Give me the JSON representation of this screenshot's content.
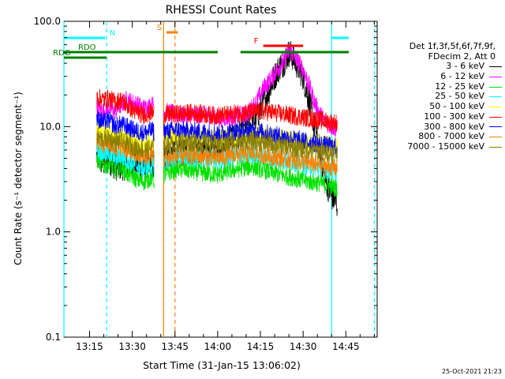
{
  "chart_data": {
    "type": "line",
    "title": "RHESSI Count Rates",
    "xlabel": "Start Time (31-Jan-15 13:06:02)",
    "ylabel": "Count Rate (s⁻¹ detector segment⁻¹)",
    "yscale": "log",
    "ylim": [
      0.1,
      100
    ],
    "xlim_minutes_after_13_06_02": [
      0,
      40
    ],
    "x_unit": "minutes after 13:06:02",
    "ytick_labels": [
      "100.0",
      "10.0",
      "1.0",
      "0.1"
    ],
    "ytick_values": [
      100,
      10,
      1,
      0.1
    ],
    "xtick_labels": [
      "13:15",
      "13:30",
      "13:45",
      "14:00",
      "14:15",
      "14:30",
      "14:45"
    ],
    "xtick_values": [
      9,
      24,
      39,
      54,
      69,
      84,
      99
    ],
    "grid": false,
    "legend_position": "right",
    "legend_header": [
      "Det 1f,3f,5f,6f,7f,9f,",
      "FDecim 2, Att 0"
    ],
    "series": [
      {
        "name": "3 - 6 keV",
        "color": "#000000",
        "points": [
          [
            11.5,
            5.2
          ],
          [
            14,
            4.5
          ],
          [
            16,
            4.8
          ],
          [
            18,
            4.2
          ],
          [
            22,
            4.2
          ],
          [
            25,
            4.5
          ],
          [
            28,
            4.0
          ],
          [
            31,
            4.3
          ],
          [
            31.7,
            3.8
          ],
          [
            35,
            5.0
          ],
          [
            39,
            5.5
          ],
          [
            44,
            5.8
          ],
          [
            50,
            6.0
          ],
          [
            54,
            6.5
          ],
          [
            58,
            7.5
          ],
          [
            62,
            8.5
          ],
          [
            66,
            10.5
          ],
          [
            68,
            13
          ],
          [
            70,
            17
          ],
          [
            72,
            22
          ],
          [
            74,
            30
          ],
          [
            76,
            38
          ],
          [
            77,
            40
          ],
          [
            78,
            45
          ],
          [
            79,
            50
          ],
          [
            80,
            48
          ],
          [
            82,
            38
          ],
          [
            84,
            30
          ],
          [
            86,
            18
          ],
          [
            88,
            10
          ],
          [
            90,
            5.5
          ],
          [
            92,
            3.0
          ],
          [
            94,
            2.2
          ],
          [
            96,
            1.8
          ]
        ]
      },
      {
        "name": "6 - 12 keV",
        "color": "#ff00ff",
        "points": [
          [
            11.5,
            15
          ],
          [
            14,
            14
          ],
          [
            16,
            15
          ],
          [
            18,
            14
          ],
          [
            20,
            16
          ],
          [
            22,
            18
          ],
          [
            24,
            17
          ],
          [
            26,
            16
          ],
          [
            28,
            15
          ],
          [
            31,
            16
          ],
          [
            31.7,
            16
          ],
          [
            35,
            14
          ],
          [
            40,
            13
          ],
          [
            45,
            12.8
          ],
          [
            50,
            13
          ],
          [
            55,
            12
          ],
          [
            60,
            12.5
          ],
          [
            64,
            13
          ],
          [
            66,
            15
          ],
          [
            68,
            18
          ],
          [
            70,
            23
          ],
          [
            72,
            27
          ],
          [
            74,
            32
          ],
          [
            76,
            38
          ],
          [
            77,
            40
          ],
          [
            78,
            47
          ],
          [
            79,
            52
          ],
          [
            80,
            50
          ],
          [
            82,
            42
          ],
          [
            84,
            35
          ],
          [
            86,
            25
          ],
          [
            88,
            17
          ],
          [
            90,
            13
          ],
          [
            92,
            11
          ],
          [
            94,
            10
          ],
          [
            96,
            9.5
          ]
        ]
      },
      {
        "name": "12 - 25 keV",
        "color": "#00e000",
        "points": [
          [
            11.5,
            5.0
          ],
          [
            14,
            4.2
          ],
          [
            16,
            4.5
          ],
          [
            18,
            3.8
          ],
          [
            20,
            4.2
          ],
          [
            22,
            3.6
          ],
          [
            24,
            3.4
          ],
          [
            26,
            3.1
          ],
          [
            28,
            3.0
          ],
          [
            31,
            3.3
          ],
          [
            31.7,
            3.0
          ],
          [
            35,
            3.5
          ],
          [
            40,
            4.0
          ],
          [
            45,
            3.8
          ],
          [
            50,
            3.6
          ],
          [
            54,
            3.5
          ],
          [
            58,
            3.8
          ],
          [
            62,
            4.0
          ],
          [
            66,
            4.2
          ],
          [
            70,
            3.9
          ],
          [
            74,
            3.6
          ],
          [
            78,
            3.4
          ],
          [
            82,
            3.2
          ],
          [
            86,
            3.0
          ],
          [
            90,
            2.9
          ],
          [
            94,
            2.7
          ],
          [
            96,
            2.6
          ]
        ]
      },
      {
        "name": "25 - 50 keV",
        "color": "#00ffff",
        "points": [
          [
            11.5,
            6.2
          ],
          [
            14,
            5.5
          ],
          [
            16,
            5.6
          ],
          [
            18,
            5.0
          ],
          [
            20,
            5.3
          ],
          [
            22,
            4.8
          ],
          [
            24,
            4.5
          ],
          [
            26,
            4.2
          ],
          [
            28,
            4.0
          ],
          [
            31,
            4.3
          ],
          [
            31.7,
            4.0
          ],
          [
            35,
            4.6
          ],
          [
            40,
            5.2
          ],
          [
            45,
            5.0
          ],
          [
            50,
            5.0
          ],
          [
            54,
            4.8
          ],
          [
            58,
            5.0
          ],
          [
            62,
            5.3
          ],
          [
            66,
            5.5
          ],
          [
            70,
            5.2
          ],
          [
            74,
            4.9
          ],
          [
            78,
            4.7
          ],
          [
            82,
            4.5
          ],
          [
            86,
            4.2
          ],
          [
            90,
            4.0
          ],
          [
            94,
            3.8
          ],
          [
            96,
            3.7
          ]
        ]
      },
      {
        "name": "50 - 100 keV",
        "color": "#ffff00",
        "points": [
          [
            11.5,
            9.5
          ],
          [
            14,
            8.8
          ],
          [
            16,
            9.0
          ],
          [
            18,
            8.0
          ],
          [
            20,
            8.4
          ],
          [
            22,
            8.0
          ],
          [
            24,
            7.7
          ],
          [
            26,
            7.3
          ],
          [
            28,
            7.0
          ],
          [
            31,
            7.5
          ],
          [
            31.7,
            7.0
          ],
          [
            35,
            7.8
          ],
          [
            40,
            8.3
          ],
          [
            45,
            8.2
          ],
          [
            50,
            8.0
          ],
          [
            54,
            7.8
          ],
          [
            58,
            8.0
          ],
          [
            62,
            8.4
          ],
          [
            66,
            8.6
          ],
          [
            70,
            8.2
          ],
          [
            74,
            7.9
          ],
          [
            78,
            7.6
          ],
          [
            82,
            7.3
          ],
          [
            86,
            7.1
          ],
          [
            90,
            6.9
          ],
          [
            94,
            6.6
          ],
          [
            96,
            6.5
          ]
        ]
      },
      {
        "name": "100 - 300 keV",
        "color": "#ff0000",
        "points": [
          [
            11.5,
            19
          ],
          [
            14,
            18
          ],
          [
            16,
            18.5
          ],
          [
            18,
            17
          ],
          [
            20,
            18
          ],
          [
            22,
            16
          ],
          [
            24,
            14.5
          ],
          [
            26,
            13.5
          ],
          [
            28,
            13
          ],
          [
            31,
            13.5
          ],
          [
            31.7,
            13
          ],
          [
            35,
            13
          ],
          [
            40,
            13.2
          ],
          [
            45,
            13.5
          ],
          [
            50,
            13
          ],
          [
            54,
            12.7
          ],
          [
            58,
            13
          ],
          [
            62,
            13.5
          ],
          [
            66,
            13.7
          ],
          [
            70,
            14
          ],
          [
            74,
            13.5
          ],
          [
            78,
            13
          ],
          [
            82,
            12.5
          ],
          [
            86,
            12
          ],
          [
            90,
            11.5
          ],
          [
            94,
            11
          ],
          [
            96,
            10.8
          ]
        ]
      },
      {
        "name": "300 - 800 keV",
        "color": "#0000ff",
        "points": [
          [
            11.5,
            12
          ],
          [
            14,
            11
          ],
          [
            16,
            11.5
          ],
          [
            18,
            10
          ],
          [
            20,
            10.5
          ],
          [
            22,
            10
          ],
          [
            24,
            9.4
          ],
          [
            26,
            9.0
          ],
          [
            28,
            8.7
          ],
          [
            31,
            9.2
          ],
          [
            31.7,
            8.8
          ],
          [
            35,
            9.0
          ],
          [
            40,
            9.3
          ],
          [
            45,
            9.0
          ],
          [
            50,
            8.8
          ],
          [
            54,
            8.5
          ],
          [
            58,
            8.8
          ],
          [
            62,
            9.0
          ],
          [
            66,
            9.2
          ],
          [
            70,
            8.8
          ],
          [
            74,
            8.3
          ],
          [
            78,
            7.9
          ],
          [
            82,
            7.5
          ],
          [
            86,
            7.1
          ],
          [
            90,
            6.8
          ],
          [
            94,
            6.5
          ],
          [
            96,
            6.4
          ]
        ]
      },
      {
        "name": "800 - 7000 keV",
        "color": "#ff8000",
        "points": [
          [
            11.5,
            7.2
          ],
          [
            14,
            6.8
          ],
          [
            16,
            7.0
          ],
          [
            18,
            6.2
          ],
          [
            20,
            6.5
          ],
          [
            22,
            6.0
          ],
          [
            24,
            5.6
          ],
          [
            26,
            5.3
          ],
          [
            28,
            5.1
          ],
          [
            31,
            5.4
          ],
          [
            31.7,
            5.0
          ],
          [
            35,
            5.0
          ],
          [
            40,
            5.2
          ],
          [
            45,
            5.3
          ],
          [
            50,
            5.2
          ],
          [
            54,
            5.0
          ],
          [
            58,
            5.3
          ],
          [
            62,
            5.5
          ],
          [
            66,
            5.6
          ],
          [
            70,
            5.4
          ],
          [
            74,
            5.1
          ],
          [
            78,
            4.9
          ],
          [
            82,
            4.7
          ],
          [
            86,
            4.5
          ],
          [
            90,
            4.3
          ],
          [
            94,
            4.1
          ],
          [
            96,
            4.0
          ]
        ]
      },
      {
        "name": "7000 - 15000 keV",
        "color": "#8b8000",
        "points": [
          [
            11.5,
            8.0
          ],
          [
            14,
            7.5
          ],
          [
            16,
            7.8
          ],
          [
            18,
            7.0
          ],
          [
            20,
            7.3
          ],
          [
            22,
            6.8
          ],
          [
            24,
            6.5
          ],
          [
            26,
            6.2
          ],
          [
            28,
            6.0
          ],
          [
            31,
            6.3
          ],
          [
            31.7,
            6.0
          ],
          [
            35,
            6.5
          ],
          [
            40,
            7.0
          ],
          [
            45,
            7.1
          ],
          [
            50,
            6.9
          ],
          [
            54,
            6.7
          ],
          [
            58,
            6.9
          ],
          [
            62,
            7.1
          ],
          [
            66,
            7.3
          ],
          [
            70,
            7.0
          ],
          [
            74,
            6.7
          ],
          [
            78,
            6.4
          ],
          [
            82,
            6.2
          ],
          [
            86,
            6.0
          ],
          [
            90,
            5.8
          ],
          [
            94,
            5.6
          ],
          [
            96,
            5.5
          ]
        ]
      }
    ],
    "annotations": {
      "flags": [
        {
          "label": "N",
          "color": "#00ffff",
          "row": 1,
          "segments": [
            [
              0,
              14.5
            ],
            [
              94,
              100
            ]
          ]
        },
        {
          "label": "S",
          "color": "#ff8000",
          "row": 0,
          "segments": [
            [
              36,
              40
            ]
          ]
        },
        {
          "label": "F",
          "color": "#ff0000",
          "row": 2,
          "segments": [
            [
              70,
              84
            ]
          ]
        },
        {
          "label": "RDO",
          "color": "#008000",
          "row": 3,
          "segments": [
            [
              0,
              100
            ]
          ],
          "gaps": [
            [
              54,
              56
            ],
            [
              56,
              62
            ]
          ]
        },
        {
          "label": "RDG",
          "color": "#008000",
          "row": 4,
          "segments": [
            [
              0,
              15
            ]
          ]
        }
      ],
      "vlines": [
        {
          "x": 0,
          "color": "#00ffff",
          "style": "solid"
        },
        {
          "x": 15,
          "color": "#00ffff",
          "style": "dashed"
        },
        {
          "x": 35,
          "color": "#ff8000",
          "style": "solid"
        },
        {
          "x": 39,
          "color": "#ff8000",
          "style": "dashed"
        },
        {
          "x": 94,
          "color": "#00ffff",
          "style": "solid"
        },
        {
          "x": 109,
          "color": "#00ffff",
          "style": "dashed"
        }
      ]
    }
  },
  "legend": {
    "header_line1": "Det 1f,3f,5f,6f,7f,9f,",
    "header_line2": "FDecim 2, Att 0"
  },
  "footer": {
    "timestamp": "25-Oct-2021 21:23"
  }
}
